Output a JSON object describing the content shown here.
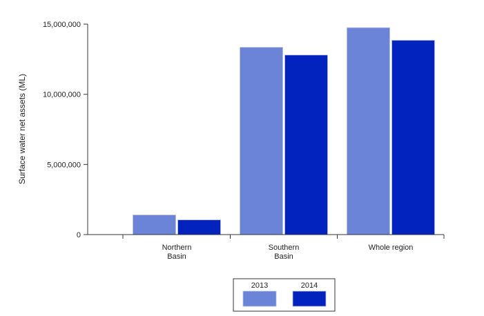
{
  "chart_data": {
    "type": "bar",
    "title": "",
    "xlabel": "",
    "ylabel": "Surface water net assets (ML)",
    "ylim": [
      0,
      15000000
    ],
    "yticks": [
      {
        "value": 0,
        "label": "0"
      },
      {
        "value": 5000000,
        "label": "5,000,000"
      },
      {
        "value": 10000000,
        "label": "10,000,000"
      },
      {
        "value": 15000000,
        "label": "15,000,000"
      }
    ],
    "categories": [
      {
        "lines": [
          "Northern",
          "Basin"
        ]
      },
      {
        "lines": [
          "Southern",
          "Basin"
        ]
      },
      {
        "lines": [
          "Whole region"
        ]
      }
    ],
    "series": [
      {
        "name": "2013",
        "color": "#6b84d7",
        "values": [
          1400000,
          13350000,
          14750000
        ]
      },
      {
        "name": "2014",
        "color": "#0323be",
        "values": [
          1050000,
          12800000,
          13850000
        ]
      }
    ],
    "grid": false,
    "legend_position": "bottom-center"
  }
}
